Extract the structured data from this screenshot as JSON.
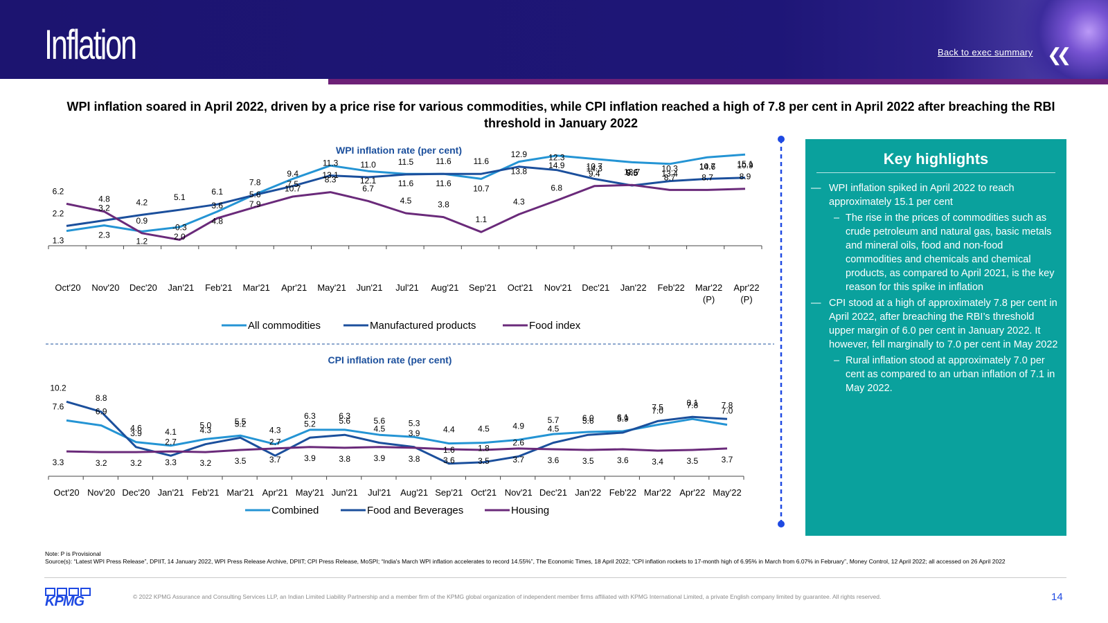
{
  "header": {
    "title": "Inflation",
    "back_link": "Back to exec summary",
    "back_icon": "double-chevron-left-icon"
  },
  "headline": "WPI inflation soared in April 2022, driven by a price rise for various commodities, while CPI inflation reached a high of 7.8 per cent in April 2022 after breaching the RBI threshold in January 2022",
  "chart_data": [
    {
      "type": "line",
      "title": "WPI inflation rate (per cent)",
      "categories": [
        "Oct'20",
        "Nov'20",
        "Dec'20",
        "Jan'21",
        "Feb'21",
        "Mar'21",
        "Apr'21",
        "May'21",
        "Jun'21",
        "Jul'21",
        "Aug'21",
        "Sep'21",
        "Oct'21",
        "Nov'21",
        "Dec'21",
        "Jan'22",
        "Feb'22",
        "Mar'22\n(P)",
        "Apr'22\n(P)"
      ],
      "series": [
        {
          "name": "All commodities",
          "color": "#2494d4",
          "values": [
            1.3,
            2.3,
            1.2,
            2.0,
            4.8,
            7.9,
            10.7,
            13.1,
            12.1,
            11.6,
            11.6,
            10.7,
            13.8,
            14.9,
            14.3,
            13.7,
            13.4,
            14.6,
            15.1
          ]
        },
        {
          "name": "Manufactured products",
          "color": "#1b4f9c",
          "values": [
            2.2,
            3.2,
            4.2,
            5.1,
            6.1,
            7.8,
            9.4,
            11.3,
            11.0,
            11.5,
            11.6,
            11.6,
            12.9,
            12.3,
            10.7,
            9.5,
            10.3,
            10.7,
            10.9
          ]
        },
        {
          "name": "Food index",
          "color": "#6a2a7a",
          "values": [
            6.2,
            4.8,
            0.9,
            -0.3,
            3.6,
            5.6,
            7.5,
            8.3,
            6.7,
            4.5,
            3.8,
            1.1,
            4.3,
            6.8,
            9.4,
            9.6,
            8.7,
            8.7,
            8.9
          ]
        }
      ],
      "labels": [
        [
          "1.3",
          "2.3",
          "1.2",
          "2.0",
          "4.8",
          "7.9",
          "10.7",
          "13.1",
          "12.1",
          "11.6",
          "11.6",
          "10.7",
          "13.8",
          "14.9",
          "14.3",
          "13.7",
          "13.4",
          "14.6",
          "15.1"
        ],
        [
          "2.2",
          "3.2",
          "4.2",
          "5.1",
          "6.1",
          "7.8",
          "9.4",
          "11.3",
          "11.0",
          "11.5",
          "11.6",
          "11.6",
          "12.9",
          "12.3",
          "10.7",
          "9.5",
          "10.3",
          "10.7",
          "10.9"
        ],
        [
          "6.2",
          "4.8",
          "0.9",
          "-0.3",
          "3.6",
          "5.6",
          "7.5",
          "8.3",
          "6.7",
          "4.5",
          "3.8",
          "1.1",
          "4.3",
          "6.8",
          "9.4",
          "9.6",
          "8.7",
          "8.7",
          "8.9"
        ]
      ],
      "legend": "bottom"
    },
    {
      "type": "line",
      "title": "CPI inflation rate (per cent)",
      "categories": [
        "Oct'20",
        "Nov'20",
        "Dec'20",
        "Jan'21",
        "Feb'21",
        "Mar'21",
        "Apr'21",
        "May'21",
        "Jun'21",
        "Jul'21",
        "Aug'21",
        "Sep'21",
        "Oct'21",
        "Nov'21",
        "Dec'21",
        "Jan'22",
        "Feb'22",
        "Mar'22",
        "Apr'22",
        "May'22"
      ],
      "series": [
        {
          "name": "Combined",
          "color": "#2494d4",
          "values": [
            7.6,
            6.9,
            4.6,
            4.1,
            5.0,
            5.5,
            4.3,
            6.3,
            6.3,
            5.6,
            5.3,
            4.4,
            4.5,
            4.9,
            5.7,
            6.0,
            6.1,
            7.0,
            7.8,
            7.0
          ]
        },
        {
          "name": "Food and Beverages",
          "color": "#1b4f9c",
          "values": [
            10.2,
            8.8,
            3.9,
            2.7,
            4.3,
            5.2,
            2.7,
            5.2,
            5.6,
            4.5,
            3.9,
            1.6,
            1.8,
            2.6,
            4.5,
            5.6,
            5.9,
            7.5,
            8.1,
            7.8
          ]
        },
        {
          "name": "Housing",
          "color": "#6a2a7a",
          "values": [
            3.3,
            3.2,
            3.2,
            3.3,
            3.2,
            3.5,
            3.7,
            3.9,
            3.8,
            3.9,
            3.8,
            3.6,
            3.5,
            3.7,
            3.6,
            3.5,
            3.6,
            3.4,
            3.5,
            3.7
          ]
        }
      ],
      "labels": [
        [
          "7.6",
          "6.9",
          "4.6",
          "4.1",
          "5.0",
          "5.5",
          "4.3",
          "6.3",
          "6.3",
          "5.6",
          "5.3",
          "4.4",
          "4.5",
          "4.9",
          "5.7",
          "6.0",
          "6.1",
          "7.0",
          "7.8",
          "7.0"
        ],
        [
          "10.2",
          "8.8",
          "3.9",
          "2.7",
          "4.3",
          "5.2",
          "2.7",
          "5.2",
          "5.6",
          "4.5",
          "3.9",
          "1.6",
          "1.8",
          "2.6",
          "4.5",
          "5.6",
          "5.9",
          "7.5",
          "8.1",
          "7.8"
        ],
        [
          "3.3",
          "3.2",
          "3.2",
          "3.3",
          "3.2",
          "3.5",
          "3.7",
          "3.9",
          "3.8",
          "3.9",
          "3.8",
          "3.6",
          "3.5",
          "3.7",
          "3.6",
          "3.5",
          "3.6",
          "3.4",
          "3.5",
          "3.7"
        ]
      ],
      "legend": "bottom"
    }
  ],
  "highlights": {
    "title": "Key highlights",
    "items": [
      {
        "text": "WPI inflation spiked in April 2022 to reach approximately 15.1 per cent",
        "sub": "The rise in the prices of commodities such as crude petroleum and natural gas, basic metals and mineral oils, food and non-food commodities and chemicals and chemical products, as compared to April 2021, is the key reason for this spike in inflation"
      },
      {
        "text": "CPI stood at a high of approximately 7.8 per cent in April 2022, after breaching the RBI’s threshold upper margin of 6.0 per cent in January 2022. It however, fell marginally to 7.0 per cent in May 2022",
        "sub": "Rural inflation stood at approximately 7.0 per cent as compared to an urban inflation of 7.1 in May 2022."
      }
    ]
  },
  "note": {
    "line1": "Note: P is Provisional",
    "line2": "Source(s): “Latest WPI Press Release”, DPIIT, 14 January 2022, WPI Press Release Archive, DPIIT; CPI Press Release, MoSPI; “India's March WPI inflation accelerates to record 14.55%”, The Economic Times, 18 April 2022; “CPI inflation rockets to 17-month high of 6.95% in March from 6.07% in February”, Money Control, 12 April 2022; all accessed on 26 April 2022"
  },
  "footer": {
    "logo_text": "KPMG",
    "copyright": "© 2022 KPMG Assurance and Consulting Services LLP, an Indian Limited Liability Partnership and a member firm of the KPMG global organization of independent member firms affiliated with KPMG International Limited, a private English company limited by guarantee. All rights reserved.",
    "page": "14"
  }
}
